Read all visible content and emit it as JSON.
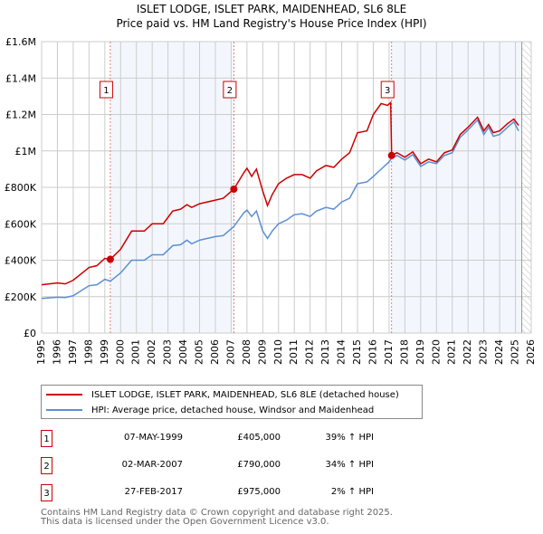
{
  "chart_data": {
    "type": "line",
    "title": "ISLET LODGE, ISLET PARK, MAIDENHEAD, SL6 8LE",
    "subtitle": "Price paid vs. HM Land Registry's House Price Index (HPI)",
    "xlim": [
      1995,
      2026
    ],
    "ylim": [
      0,
      1600000
    ],
    "x_ticks": [
      "1995",
      "1996",
      "1997",
      "1998",
      "1999",
      "2000",
      "2001",
      "2002",
      "2003",
      "2004",
      "2005",
      "2006",
      "2007",
      "2008",
      "2009",
      "2010",
      "2011",
      "2012",
      "2013",
      "2014",
      "2015",
      "2016",
      "2017",
      "2018",
      "2019",
      "2020",
      "2021",
      "2022",
      "2023",
      "2024",
      "2025",
      "2026"
    ],
    "y_ticks": [
      {
        "v": 0,
        "label": "£0"
      },
      {
        "v": 200000,
        "label": "£200K"
      },
      {
        "v": 400000,
        "label": "£400K"
      },
      {
        "v": 600000,
        "label": "£600K"
      },
      {
        "v": 800000,
        "label": "£800K"
      },
      {
        "v": 1000000,
        "label": "£1M"
      },
      {
        "v": 1200000,
        "label": "£1.2M"
      },
      {
        "v": 1400000,
        "label": "£1.4M"
      },
      {
        "v": 1600000,
        "label": "£1.6M"
      }
    ],
    "grid": true,
    "shaded_ranges": [
      [
        1999.35,
        2007.17
      ],
      [
        2017.16,
        2025.4
      ]
    ],
    "forecast_hatch_from": 2025.4,
    "series": [
      {
        "name": "ISLET LODGE, ISLET PARK, MAIDENHEAD, SL6 8LE (detached house)",
        "color": "#cc0000",
        "x": [
          1995,
          1996,
          1996.5,
          1997,
          1998,
          1998.5,
          1999,
          1999.35,
          2000,
          2000.7,
          2001.5,
          2002,
          2002.7,
          2003.3,
          2003.8,
          2004.2,
          2004.5,
          2005,
          2006,
          2006.5,
          2007.17,
          2007.8,
          2008,
          2008.3,
          2008.6,
          2009,
          2009.3,
          2009.6,
          2010,
          2010.5,
          2011,
          2011.5,
          2012,
          2012.4,
          2013,
          2013.5,
          2014,
          2014.5,
          2015,
          2015.6,
          2016,
          2016.5,
          2016.9,
          2017.1,
          2017.16,
          2017.5,
          2018,
          2018.5,
          2019,
          2019.5,
          2020,
          2020.5,
          2021,
          2021.5,
          2022,
          2022.6,
          2023,
          2023.3,
          2023.6,
          2024,
          2024.5,
          2024.9,
          2025.2
        ],
        "y": [
          265000,
          275000,
          270000,
          290000,
          360000,
          370000,
          410000,
          405000,
          460000,
          560000,
          560000,
          600000,
          600000,
          670000,
          680000,
          705000,
          690000,
          710000,
          730000,
          740000,
          790000,
          880000,
          905000,
          860000,
          900000,
          780000,
          700000,
          760000,
          820000,
          850000,
          870000,
          870000,
          850000,
          890000,
          920000,
          910000,
          955000,
          990000,
          1100000,
          1110000,
          1200000,
          1260000,
          1250000,
          1265000,
          975000,
          990000,
          965000,
          995000,
          930000,
          955000,
          940000,
          990000,
          1005000,
          1090000,
          1130000,
          1185000,
          1110000,
          1145000,
          1100000,
          1110000,
          1150000,
          1175000,
          1140000
        ]
      },
      {
        "name": "HPI: Average price, detached house, Windsor and Maidenhead",
        "color": "#5b8fd4",
        "x": [
          1995,
          1996,
          1996.5,
          1997,
          1998,
          1998.5,
          1999,
          1999.35,
          2000,
          2000.7,
          2001.5,
          2002,
          2002.7,
          2003.3,
          2003.8,
          2004.2,
          2004.5,
          2005,
          2006,
          2006.5,
          2007.17,
          2007.8,
          2008,
          2008.3,
          2008.6,
          2009,
          2009.3,
          2009.6,
          2010,
          2010.5,
          2011,
          2011.5,
          2012,
          2012.4,
          2013,
          2013.5,
          2014,
          2014.5,
          2015,
          2015.6,
          2016,
          2016.5,
          2017,
          2017.16,
          2017.5,
          2018,
          2018.5,
          2019,
          2019.5,
          2020,
          2020.5,
          2021,
          2021.5,
          2022,
          2022.6,
          2023,
          2023.3,
          2023.6,
          2024,
          2024.5,
          2024.9,
          2025.2
        ],
        "y": [
          190000,
          197000,
          195000,
          205000,
          260000,
          265000,
          295000,
          285000,
          330000,
          400000,
          400000,
          430000,
          430000,
          480000,
          485000,
          510000,
          490000,
          510000,
          530000,
          535000,
          585000,
          660000,
          675000,
          640000,
          670000,
          560000,
          520000,
          560000,
          600000,
          620000,
          650000,
          655000,
          640000,
          670000,
          690000,
          680000,
          720000,
          740000,
          820000,
          830000,
          860000,
          900000,
          940000,
          960000,
          975000,
          950000,
          980000,
          915000,
          940000,
          930000,
          975000,
          990000,
          1075000,
          1115000,
          1170000,
          1090000,
          1130000,
          1080000,
          1090000,
          1130000,
          1160000,
          1110000
        ]
      }
    ],
    "sales": [
      {
        "id": "1",
        "x": 1999.35,
        "y": 405000,
        "date": "07-MAY-1999",
        "price": "£405,000",
        "hpi": "39% ↑ HPI"
      },
      {
        "id": "2",
        "x": 2007.17,
        "y": 790000,
        "date": "02-MAR-2007",
        "price": "£790,000",
        "hpi": "34% ↑ HPI"
      },
      {
        "id": "3",
        "x": 2017.16,
        "y": 975000,
        "date": "27-FEB-2017",
        "price": "£975,000",
        "hpi": "2% ↑ HPI"
      }
    ]
  },
  "footer": {
    "line1": "Contains HM Land Registry data © Crown copyright and database right 2025.",
    "line2": "This data is licensed under the Open Government Licence v3.0."
  }
}
